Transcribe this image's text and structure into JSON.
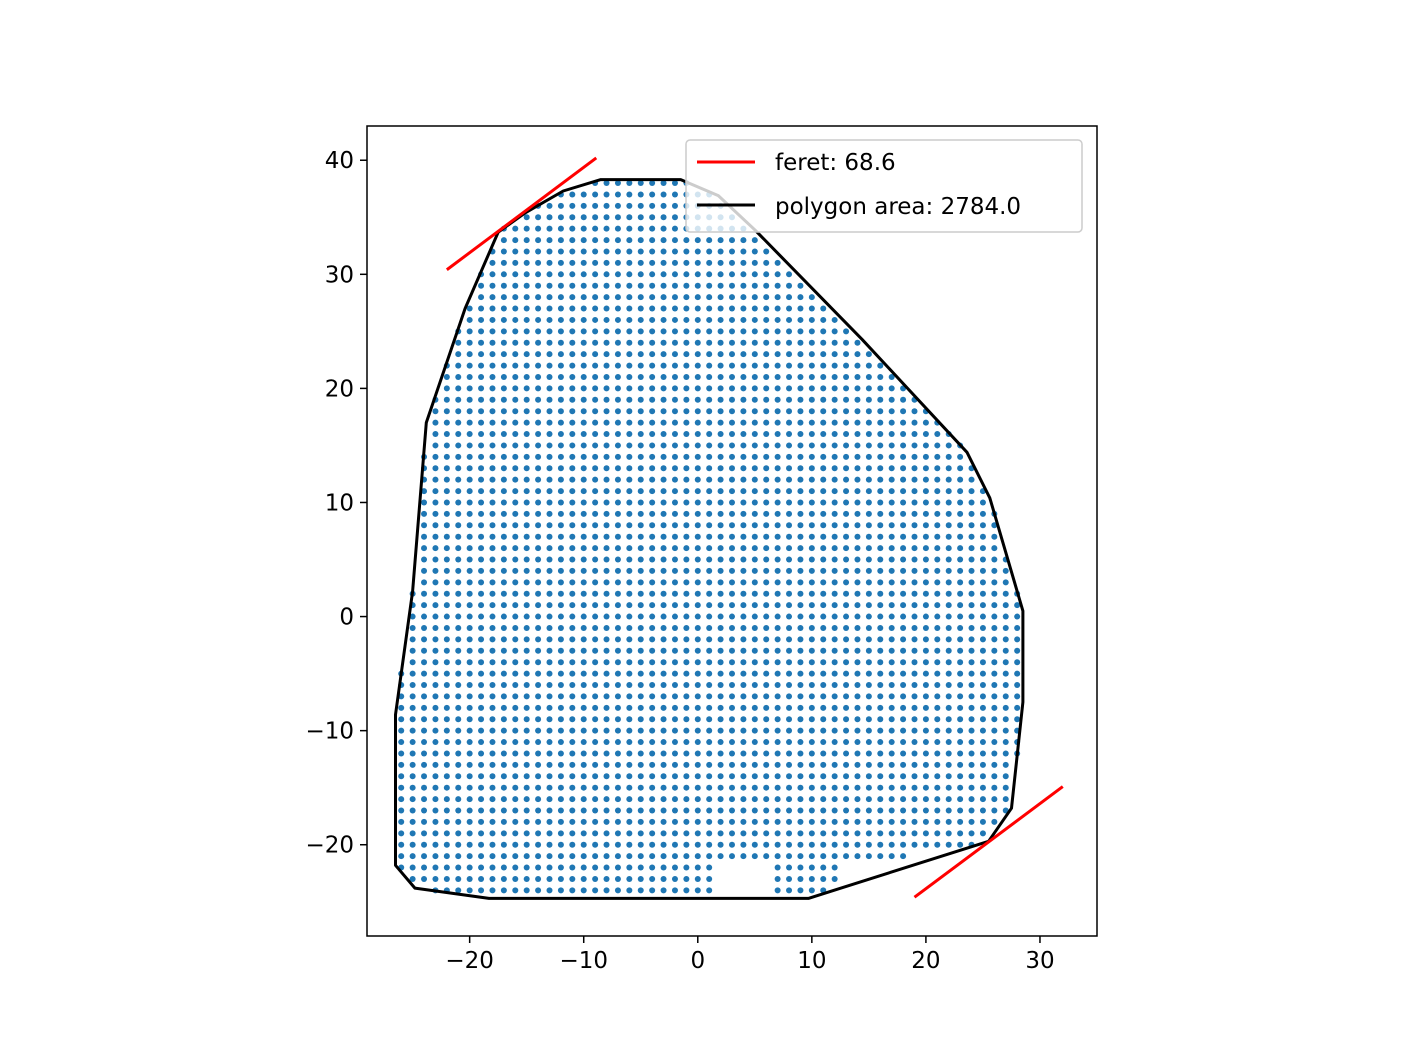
{
  "chart_data": {
    "type": "scatter",
    "title": "",
    "xlabel": "",
    "ylabel": "",
    "xlim": [
      -29,
      35
    ],
    "ylim": [
      -28,
      43
    ],
    "x_ticks": [
      -20,
      -10,
      0,
      10,
      20,
      30
    ],
    "y_ticks": [
      -20,
      -10,
      0,
      10,
      20,
      30,
      40
    ],
    "x_tick_labels": [
      "−20",
      "−10",
      "0",
      "10",
      "20",
      "30"
    ],
    "y_tick_labels": [
      "−20",
      "−10",
      "0",
      "10",
      "20",
      "30",
      "40"
    ],
    "grid": false,
    "legend_position": "top-right",
    "point_color": "#1f77b4",
    "point_spacing": 1,
    "hull_vertices": [
      [
        -24.8,
        -23.8
      ],
      [
        -26.5,
        -21.8
      ],
      [
        -26.5,
        -8.6
      ],
      [
        -25.0,
        2.2
      ],
      [
        -23.8,
        17.0
      ],
      [
        -20.4,
        27.0
      ],
      [
        -17.5,
        33.7
      ],
      [
        -15.1,
        35.4
      ],
      [
        -11.8,
        37.3
      ],
      [
        -8.5,
        38.3
      ],
      [
        -1.5,
        38.3
      ],
      [
        1.8,
        36.9
      ],
      [
        5.0,
        33.9
      ],
      [
        14.4,
        24.3
      ],
      [
        23.6,
        14.4
      ],
      [
        25.6,
        10.4
      ],
      [
        28.5,
        0.5
      ],
      [
        28.5,
        -7.5
      ],
      [
        27.5,
        -16.8
      ],
      [
        25.5,
        -19.7
      ],
      [
        9.7,
        -24.7
      ],
      [
        -18.3,
        -24.7
      ]
    ],
    "hull_color": "#000000",
    "feret_lines": [
      {
        "x": [
          -22.0,
          -8.9
        ],
        "y": [
          30.4,
          40.2
        ]
      },
      {
        "x": [
          19.0,
          32.0
        ],
        "y": [
          -24.6,
          -14.9
        ]
      }
    ],
    "feret_color": "#ff0000",
    "series": [
      {
        "name": "feret: 68.6",
        "color": "#ff0000"
      },
      {
        "name": "polygon area: 2784.0",
        "color": "#000000"
      }
    ]
  }
}
